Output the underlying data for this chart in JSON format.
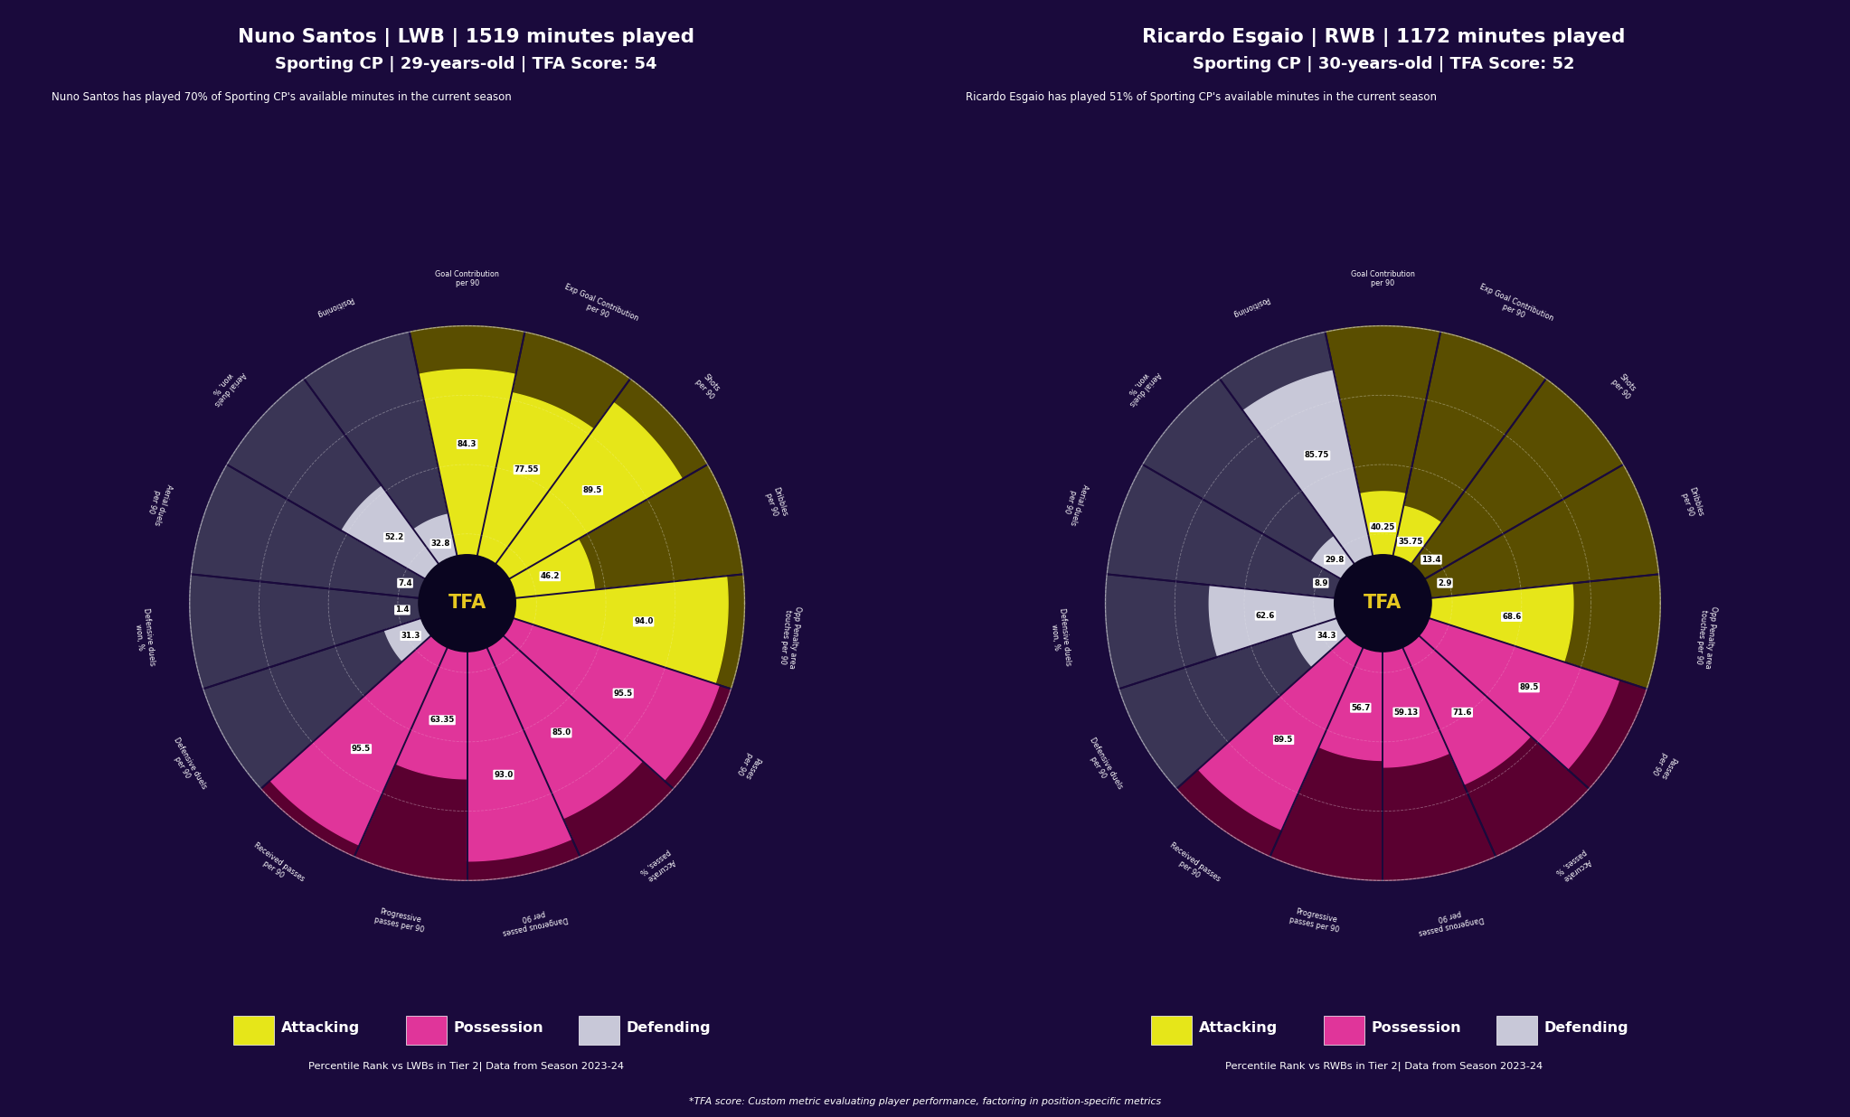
{
  "background_color": "#1a0a3c",
  "players": [
    {
      "name": "Nuno Santos",
      "position": "LWB",
      "minutes": 1519,
      "club": "Sporting CP",
      "age": 29,
      "tfa_score": 54,
      "subtitle": "Nuno Santos has played 70% of Sporting CP's available minutes in the current season",
      "comparison": "LWBs",
      "metrics": [
        {
          "label": "Goal Contribution\nper 90",
          "value": 84.3,
          "category": "attacking"
        },
        {
          "label": "Exp Goal Contribution\nper 90",
          "value": 77.55,
          "category": "attacking"
        },
        {
          "label": "Shots\nper 90",
          "value": 89.5,
          "category": "attacking"
        },
        {
          "label": "Dribbles\nper 90",
          "value": 46.2,
          "category": "attacking"
        },
        {
          "label": "Opp Penalty area\ntouches per 90",
          "value": 94.0,
          "category": "attacking"
        },
        {
          "label": "Passes\nper 90",
          "value": 95.5,
          "category": "possession"
        },
        {
          "label": "Accurate\npasses, %",
          "value": 85.0,
          "category": "possession"
        },
        {
          "label": "Dangerous passes\nper 90",
          "value": 93.0,
          "category": "possession"
        },
        {
          "label": "Progressive\npasses per 90",
          "value": 63.35,
          "category": "possession"
        },
        {
          "label": "Received passes\nper 90",
          "value": 95.5,
          "category": "possession"
        },
        {
          "label": "Defensive duels\nper 90",
          "value": 31.3,
          "category": "defending"
        },
        {
          "label": "Defensive duels\nwon, %",
          "value": 1.4,
          "category": "defending"
        },
        {
          "label": "Aerial duels\nper 90",
          "value": 7.4,
          "category": "defending"
        },
        {
          "label": "Aerial duels\nwon, %",
          "value": 52.2,
          "category": "defending"
        },
        {
          "label": "Positioning",
          "value": 32.8,
          "category": "defending"
        }
      ]
    },
    {
      "name": "Ricardo Esgaio",
      "position": "RWB",
      "minutes": 1172,
      "club": "Sporting CP",
      "age": 30,
      "tfa_score": 52,
      "subtitle": "Ricardo Esgaio has played 51% of Sporting CP's available minutes in the current season",
      "comparison": "RWBs",
      "metrics": [
        {
          "label": "Goal Contribution\nper 90",
          "value": 40.25,
          "category": "attacking"
        },
        {
          "label": "Exp Goal Contribution\nper 90",
          "value": 35.75,
          "category": "attacking"
        },
        {
          "label": "Shots\nper 90",
          "value": 13.4,
          "category": "attacking"
        },
        {
          "label": "Dribbles\nper 90",
          "value": 2.9,
          "category": "attacking"
        },
        {
          "label": "Opp Penalty area\ntouches per 90",
          "value": 68.6,
          "category": "attacking"
        },
        {
          "label": "Passes\nper 90",
          "value": 89.5,
          "category": "possession"
        },
        {
          "label": "Accurate\npasses, %",
          "value": 71.6,
          "category": "possession"
        },
        {
          "label": "Dangerous passes\nper 90",
          "value": 59.13,
          "category": "possession"
        },
        {
          "label": "Progressive\npasses per 90",
          "value": 56.7,
          "category": "possession"
        },
        {
          "label": "Received passes\nper 90",
          "value": 89.5,
          "category": "possession"
        },
        {
          "label": "Defensive duels\nper 90",
          "value": 34.3,
          "category": "defending"
        },
        {
          "label": "Defensive duels\nwon, %",
          "value": 62.6,
          "category": "defending"
        },
        {
          "label": "Aerial duels\nper 90",
          "value": 8.9,
          "category": "defending"
        },
        {
          "label": "Aerial duels\nwon, %",
          "value": 29.8,
          "category": "defending"
        },
        {
          "label": "Positioning",
          "value": 85.75,
          "category": "defending"
        }
      ]
    }
  ],
  "colors": {
    "attacking": "#e6e619",
    "attacking_bg": "#5a4e00",
    "possession": "#e0359a",
    "possession_bg": "#5a0030",
    "defending": "#c8c8d8",
    "defending_bg": "#3a3555",
    "background": "#1a0a3c",
    "center_circle": "#0a0520",
    "tfa_color": "#e6c820",
    "grid_color": "#ffffff",
    "sep_color": "#1a0a3c",
    "label_bg": "#ffffff",
    "label_text": "#000000",
    "text_white": "#ffffff"
  },
  "legend": [
    {
      "label": "Attacking",
      "color": "#e6e619"
    },
    {
      "label": "Possession",
      "color": "#e0359a"
    },
    {
      "label": "Defending",
      "color": "#c8c8d8"
    }
  ],
  "footer_left": "Percentile Rank vs LWBs in Tier 2| Data from Season 2023-24",
  "footer_right": "Percentile Rank vs RWBs in Tier 2| Data from Season 2023-24",
  "footer_note": "*TFA score: Custom metric evaluating player performance, factoring in position-specific metrics"
}
